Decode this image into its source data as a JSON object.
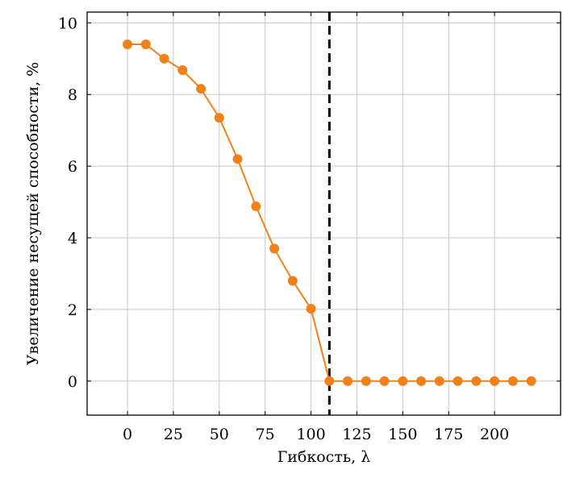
{
  "chart_data": {
    "type": "line",
    "title": "",
    "xlabel": "Гибкость, λ",
    "ylabel": "Увеличение несущей способности, %",
    "xlim": [
      -22,
      236
    ],
    "ylim": [
      -0.95,
      10.3
    ],
    "xticks": [
      0,
      25,
      50,
      75,
      100,
      125,
      150,
      175,
      200
    ],
    "yticks": [
      0,
      2,
      4,
      6,
      8,
      10
    ],
    "grid": true,
    "series": [
      {
        "color": "#f28018",
        "marker": "circle",
        "x": [
          0,
          10,
          20,
          30,
          40,
          50,
          60,
          70,
          80,
          90,
          100,
          110,
          120,
          130,
          140,
          150,
          160,
          170,
          180,
          190,
          200,
          210,
          220
        ],
        "y": [
          9.4,
          9.4,
          9.0,
          8.68,
          8.16,
          7.35,
          6.2,
          4.88,
          3.7,
          2.8,
          2.02,
          0,
          0,
          0,
          0,
          0,
          0,
          0,
          0,
          0,
          0,
          0,
          0
        ]
      }
    ],
    "vline": {
      "x": 110,
      "style": "dashed",
      "color": "#000000"
    }
  }
}
